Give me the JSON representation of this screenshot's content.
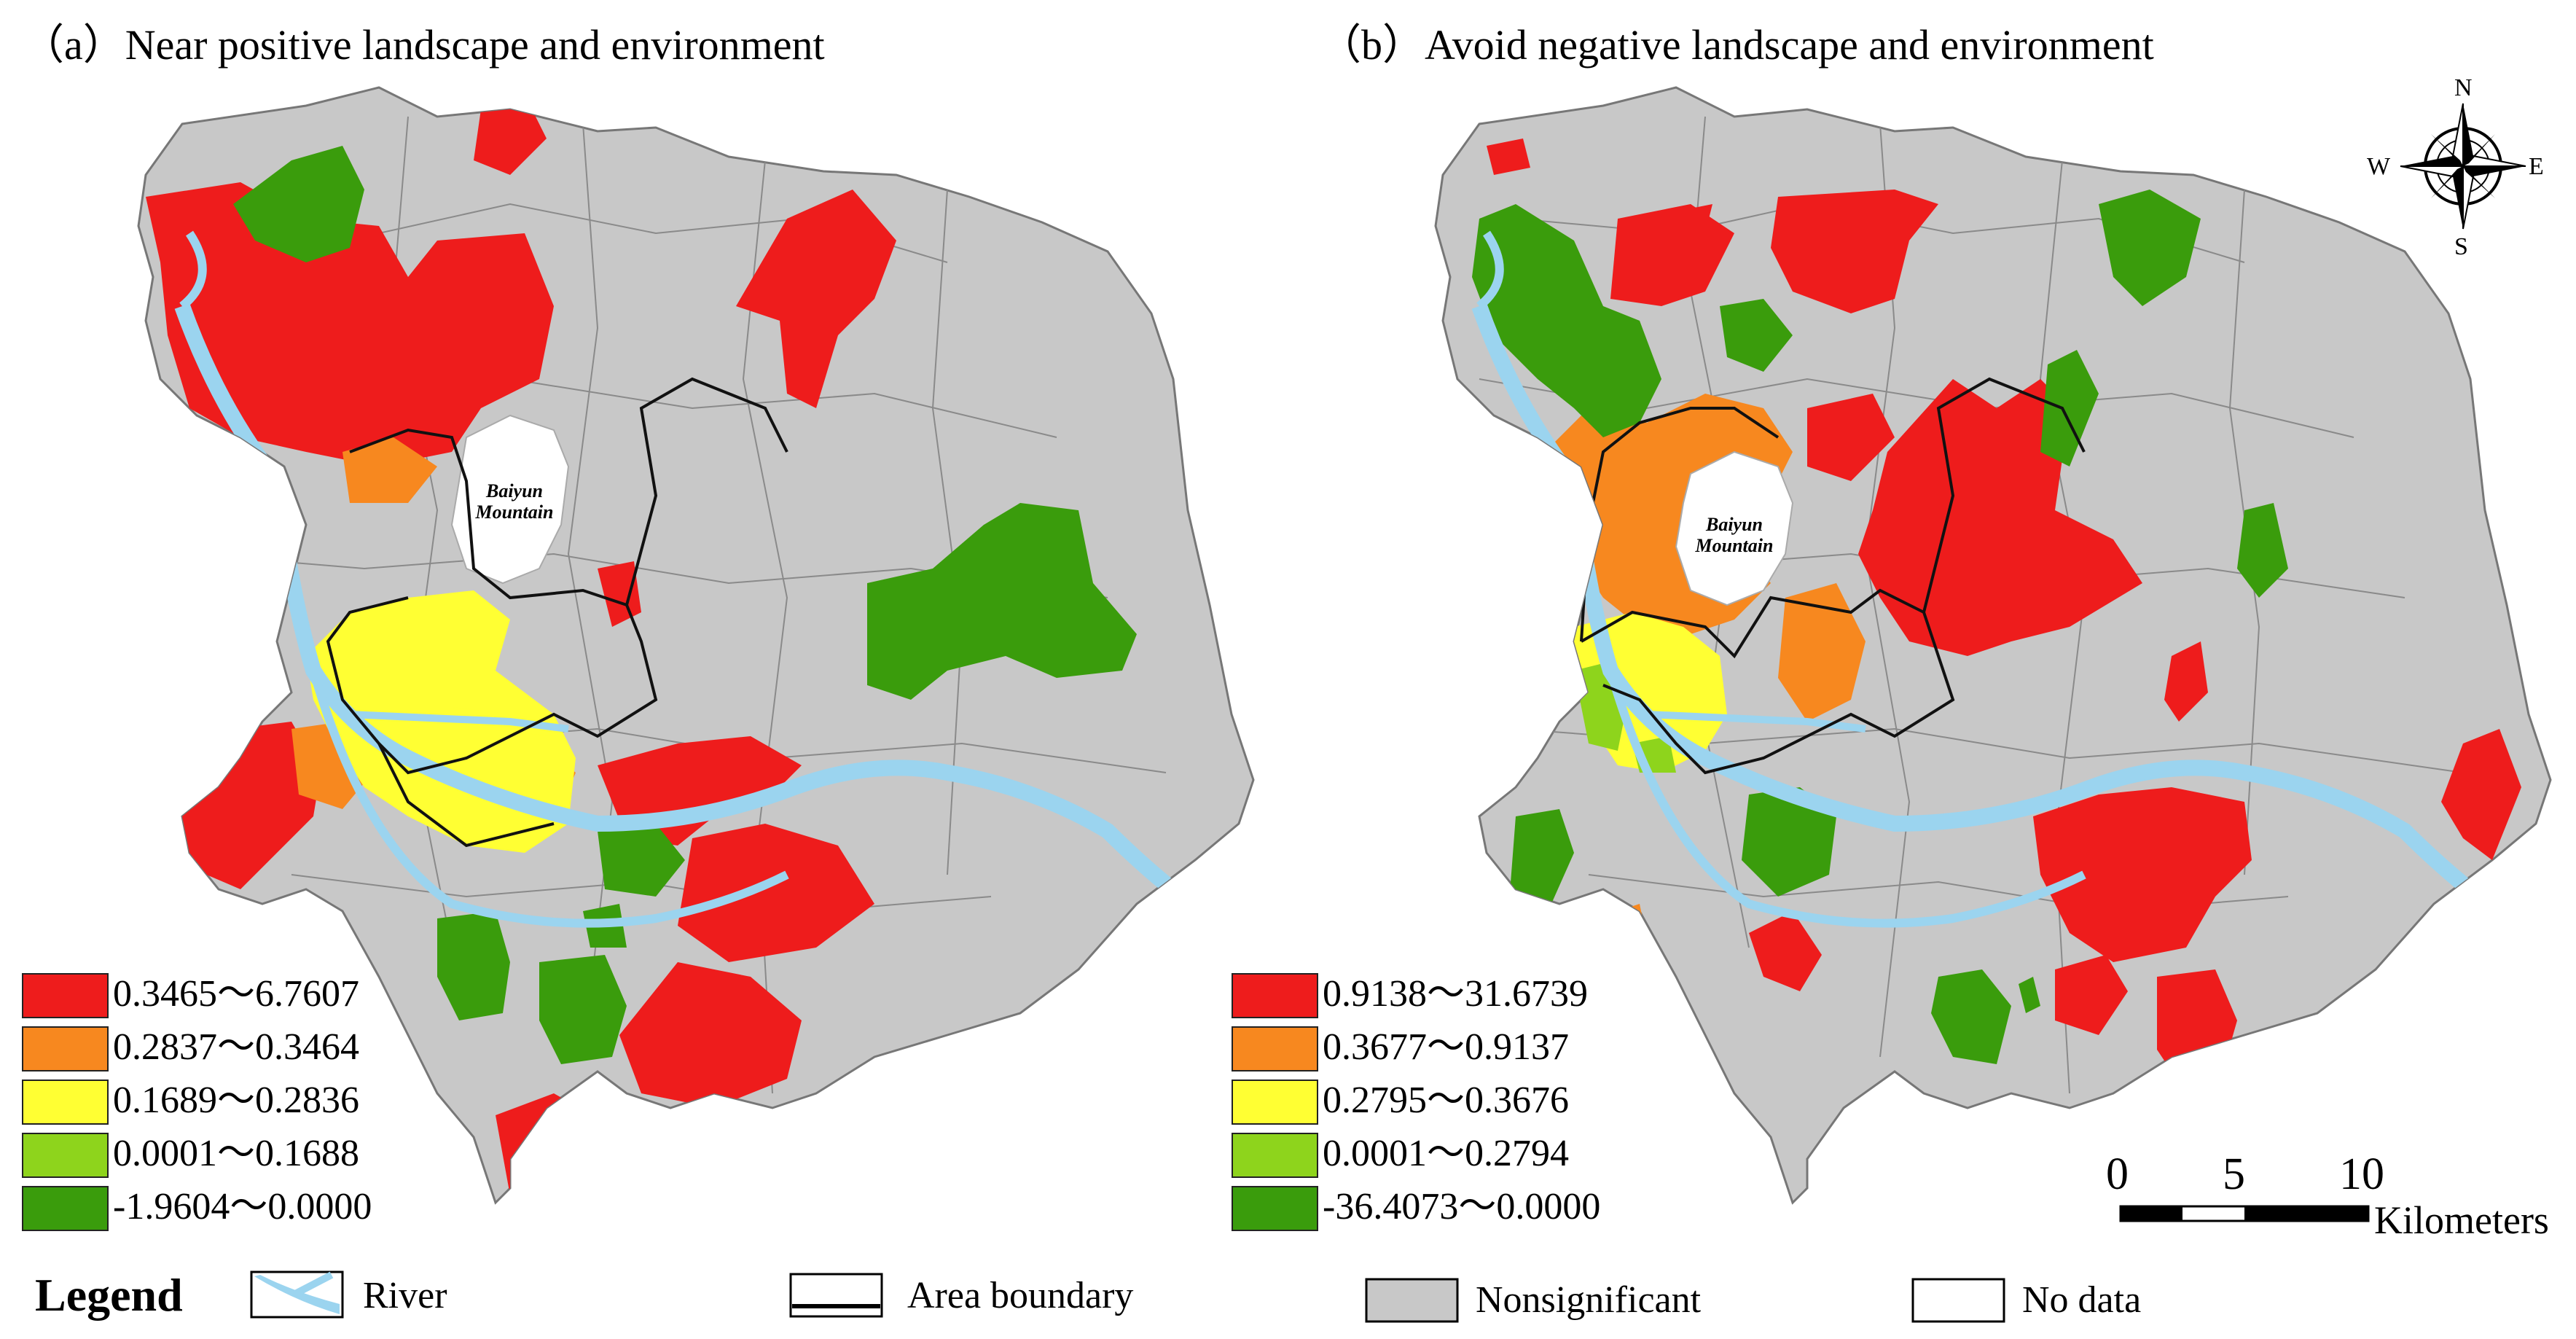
{
  "titles": {
    "panel_a": "（a）Near positive landscape and environment",
    "panel_b": "（b）Avoid negative landscape and environment"
  },
  "place_labels": {
    "a": "Baiyun Mountain",
    "b": "Baiyun Mountain"
  },
  "panel_a_classes": [
    {
      "label": "0.3465～6.7607",
      "color": "#ee1c1c"
    },
    {
      "label": "0.2837～0.3464",
      "color": "#f7881f"
    },
    {
      "label": "0.1689～0.2836",
      "color": "#ffff33"
    },
    {
      "label": "0.0001～0.1688",
      "color": "#8ed41c"
    },
    {
      "label": "-1.9604～0.0000",
      "color": "#3a9c0c"
    }
  ],
  "panel_b_classes": [
    {
      "label": "0.9138～31.6739",
      "color": "#ee1c1c"
    },
    {
      "label": "0.3677～0.9137",
      "color": "#f7881f"
    },
    {
      "label": "0.2795～0.3676",
      "color": "#ffff33"
    },
    {
      "label": "0.0001～0.2794",
      "color": "#8ed41c"
    },
    {
      "label": "-36.4073～0.0000",
      "color": "#3a9c0c"
    }
  ],
  "legend": {
    "heading": "Legend",
    "river": "River",
    "area_boundary": "Area boundary",
    "nonsignificant": "Nonsignificant",
    "no_data": "No data"
  },
  "colors": {
    "nonsignificant": "#c8c8c8",
    "river": "#9bd4ef",
    "no_data": "#ffffff",
    "boundary": "#111111"
  },
  "compass": {
    "n": "N",
    "s": "S",
    "e": "E",
    "w": "W"
  },
  "scale_bar": {
    "ticks": [
      "0",
      "5",
      "10"
    ],
    "unit": "Kilometers"
  }
}
